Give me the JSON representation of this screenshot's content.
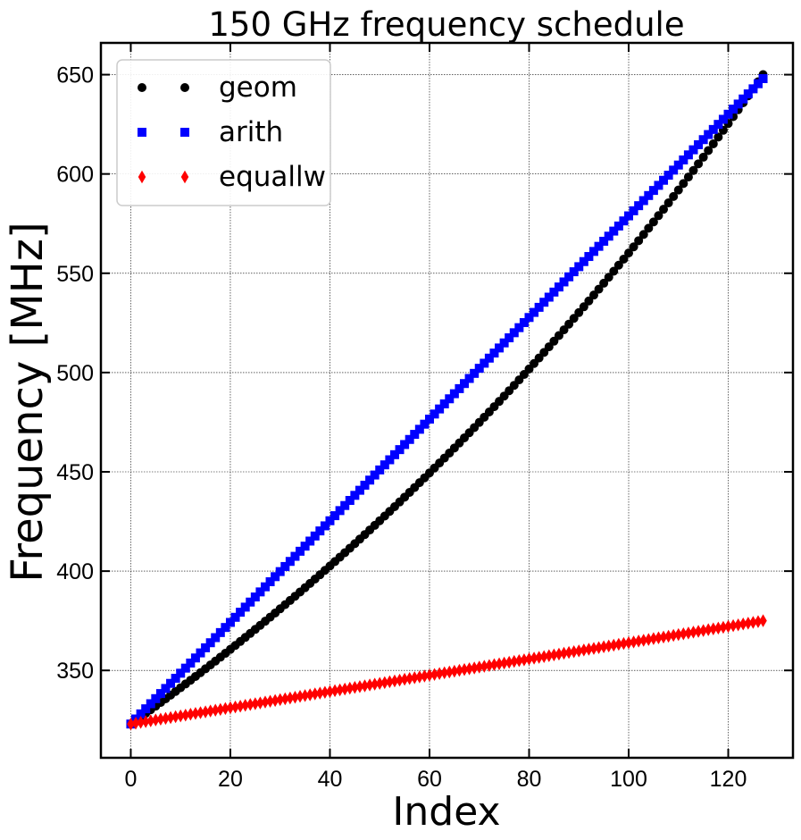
{
  "chart_data": {
    "type": "scatter",
    "title": "150 GHz frequency schedule",
    "xlabel": "Index",
    "ylabel": "Frequency [MHz]",
    "xlim": [
      -6,
      133
    ],
    "ylim": [
      306,
      666
    ],
    "xticks": [
      0,
      20,
      40,
      60,
      80,
      100,
      120
    ],
    "yticks": [
      350,
      400,
      450,
      500,
      550,
      600,
      650
    ],
    "grid": true,
    "legend_position": "top-left",
    "x": {
      "start": 0,
      "end": 127,
      "step": 1
    },
    "series": [
      {
        "name": "geom",
        "marker": "circle",
        "color": "#000000",
        "scale": "geometric",
        "start": 323,
        "end": 650
      },
      {
        "name": "arith",
        "marker": "square",
        "color": "#0000ff",
        "scale": "linear",
        "start": 323,
        "end": 648
      },
      {
        "name": "equallw",
        "marker": "diamond",
        "color": "#ff0000",
        "scale": "linear",
        "start": 323,
        "end": 375
      }
    ]
  }
}
